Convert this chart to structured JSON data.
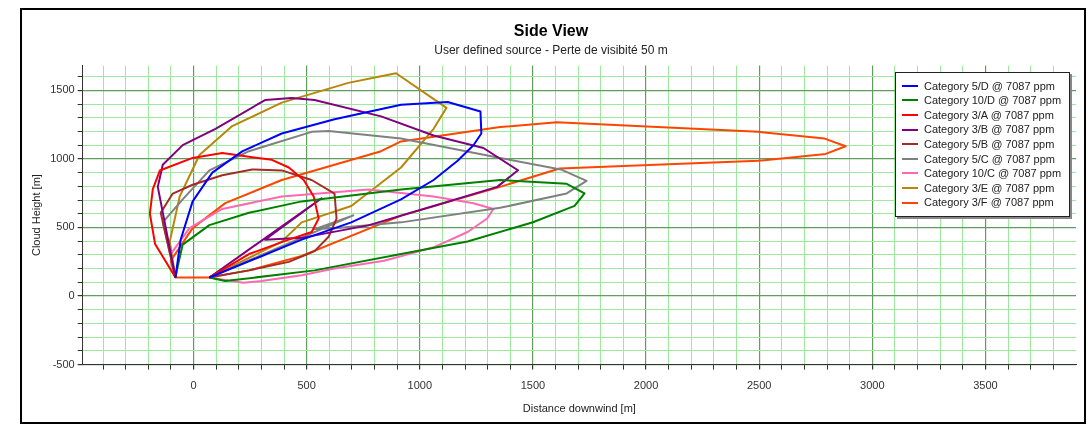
{
  "chart_data": {
    "type": "line",
    "title": "Side View",
    "subtitle": "User defined source - Perte de visibité 50 m",
    "xlabel": "Distance downwind [m]",
    "ylabel": "Cloud Height [m]",
    "xlim": [
      -490,
      3900
    ],
    "ylim": [
      -500,
      1680
    ],
    "xticks": [
      {
        "value": -400,
        "label": null
      },
      {
        "value": -300,
        "label": null
      },
      {
        "value": -200,
        "label": null
      },
      {
        "value": -100,
        "label": null
      },
      0,
      {
        "value": 100,
        "label": null
      },
      {
        "value": 200,
        "label": null
      },
      {
        "value": 300,
        "label": null
      },
      {
        "value": 400,
        "label": null
      },
      500,
      {
        "value": 600,
        "label": null
      },
      {
        "value": 700,
        "label": null
      },
      {
        "value": 800,
        "label": null
      },
      {
        "value": 900,
        "label": null
      },
      1000,
      {
        "value": 1100,
        "label": null
      },
      {
        "value": 1200,
        "label": null
      },
      {
        "value": 1300,
        "label": null
      },
      {
        "value": 1400,
        "label": null
      },
      1500,
      {
        "value": 1600,
        "label": null
      },
      {
        "value": 1700,
        "label": null
      },
      {
        "value": 1800,
        "label": null
      },
      {
        "value": 1900,
        "label": null
      },
      2000,
      {
        "value": 2100,
        "label": null
      },
      {
        "value": 2200,
        "label": null
      },
      {
        "value": 2300,
        "label": null
      },
      {
        "value": 2400,
        "label": null
      },
      2500,
      {
        "value": 2600,
        "label": null
      },
      {
        "value": 2700,
        "label": null
      },
      {
        "value": 2800,
        "label": null
      },
      {
        "value": 2900,
        "label": null
      },
      3000,
      {
        "value": 3100,
        "label": null
      },
      {
        "value": 3200,
        "label": null
      },
      {
        "value": 3300,
        "label": null
      },
      {
        "value": 3400,
        "label": null
      },
      3500,
      {
        "value": 3600,
        "label": null
      },
      {
        "value": 3700,
        "label": null
      },
      {
        "value": 3800,
        "label": null
      }
    ],
    "yticks": [
      -500,
      {
        "value": -400,
        "label": null
      },
      {
        "value": -300,
        "label": null
      },
      {
        "value": -200,
        "label": null
      },
      {
        "value": -100,
        "label": null
      },
      0,
      {
        "value": 100,
        "label": null
      },
      {
        "value": 200,
        "label": null
      },
      {
        "value": 300,
        "label": null
      },
      {
        "value": 400,
        "label": null
      },
      500,
      {
        "value": 600,
        "label": null
      },
      {
        "value": 700,
        "label": null
      },
      {
        "value": 800,
        "label": null
      },
      {
        "value": 900,
        "label": null
      },
      1000,
      {
        "value": 1100,
        "label": null
      },
      {
        "value": 1200,
        "label": null
      },
      {
        "value": 1300,
        "label": null
      },
      {
        "value": 1400,
        "label": null
      },
      1500,
      {
        "value": 1600,
        "label": null
      }
    ],
    "grid": true,
    "legend": "top right",
    "marker": "none",
    "line_style": "solid",
    "series": [
      {
        "name": "Category 5/D @ 7087 ppm",
        "color": "#0000ff",
        "x": [
          -80,
          -57,
          -4,
          83,
          215,
          390,
          623,
          917,
          1123,
          1268,
          1272,
          1237,
          1167,
          1061,
          917,
          697,
          478,
          300,
          150,
          70
        ],
        "values": [
          135,
          410,
          690,
          900,
          1055,
          1185,
          1289,
          1394,
          1415,
          1345,
          1185,
          1099,
          986,
          846,
          705,
          537,
          411,
          290,
          190,
          135
        ]
      },
      {
        "name": "Category 10/D @ 7087 ppm",
        "color": "#008000",
        "x": [
          -80,
          -70,
          -48,
          70,
          245,
          478,
          917,
          1355,
          1649,
          1728,
          1684,
          1500,
          1211,
          917,
          535,
          140,
          70
        ],
        "values": [
          135,
          215,
          375,
          517,
          607,
          690,
          777,
          846,
          818,
          748,
          657,
          538,
          397,
          306,
          187,
          109,
          135
        ]
      },
      {
        "name": "Category 3/A @ 7087 ppm",
        "color": "#ff0000",
        "x": [
          -80,
          -170,
          -193,
          -180,
          -149,
          -4,
          127,
          346,
          421,
          487,
          531,
          553,
          522,
          421,
          245,
          70
        ],
        "values": [
          135,
          380,
          600,
          780,
          915,
          1007,
          1042,
          993,
          937,
          846,
          726,
          565,
          467,
          411,
          306,
          135
        ]
      },
      {
        "name": "Category 3/B @ 7087 ppm",
        "color": "#800080",
        "x": [
          -80,
          -158,
          -136,
          -48,
          97,
          316,
          434,
          535,
          829,
          1061,
          1281,
          1434,
          1342,
          1061,
          772,
          478,
          316,
          566,
          70
        ],
        "values": [
          135,
          796,
          957,
          1100,
          1219,
          1429,
          1443,
          1429,
          1310,
          1170,
          1079,
          917,
          796,
          656,
          515,
          424,
          411,
          713,
          135
        ]
      },
      {
        "name": "Category 5/B @ 7087 ppm",
        "color": "#a52a2a",
        "x": [
          -80,
          -145,
          -92,
          -4,
          127,
          259,
          390,
          522,
          623,
          632,
          597,
          535,
          421,
          245,
          70
        ],
        "values": [
          135,
          607,
          747,
          811,
          881,
          923,
          916,
          846,
          747,
          565,
          432,
          327,
          249,
          187,
          135
        ]
      },
      {
        "name": "Category 5/C @ 7087 ppm",
        "color": "#808080",
        "x": [
          -80,
          -136,
          -48,
          70,
          245,
          522,
          597,
          917,
          1355,
          1623,
          1737,
          1649,
          1355,
          917,
          623,
          535,
          706,
          70
        ],
        "values": [
          135,
          537,
          705,
          916,
          1056,
          1197,
          1204,
          1148,
          1007,
          923,
          839,
          748,
          643,
          537,
          495,
          488,
          588,
          135
        ]
      },
      {
        "name": "Category 10/C @ 7087 ppm",
        "color": "#ff69b4",
        "x": [
          -80,
          -101,
          -18,
          127,
          390,
          772,
          1061,
          1237,
          1325,
          1298,
          1211,
          1061,
          842,
          623,
          478,
          300,
          220,
          140,
          70
        ],
        "values": [
          135,
          306,
          495,
          635,
          726,
          777,
          726,
          677,
          635,
          565,
          467,
          355,
          257,
          201,
          152,
          110,
          96,
          116,
          135
        ]
      },
      {
        "name": "Category 3/E @ 7087 ppm",
        "color": "#b8860b",
        "x": [
          -80,
          -105,
          -61,
          26,
          171,
          390,
          684,
          829,
          895,
          1118,
          1061,
          917,
          697,
          478,
          390,
          70
        ],
        "values": [
          135,
          397,
          727,
          1028,
          1239,
          1410,
          1554,
          1603,
          1624,
          1372,
          1219,
          937,
          656,
          537,
          397,
          135
        ]
      },
      {
        "name": "Category 3/F @ 7087 ppm",
        "color": "#ff4500",
        "x": [
          70,
          -80,
          -101,
          -4,
          140,
          390,
          829,
          917,
          1355,
          1605,
          2496,
          2789,
          2882,
          2794,
          2496,
          1618,
          1355,
          917,
          478,
          245,
          100
        ],
        "values": [
          135,
          135,
          257,
          495,
          677,
          846,
          1056,
          1127,
          1232,
          1267,
          1197,
          1148,
          1092,
          1036,
          986,
          930,
          796,
          586,
          292,
          187,
          145
        ]
      }
    ]
  }
}
